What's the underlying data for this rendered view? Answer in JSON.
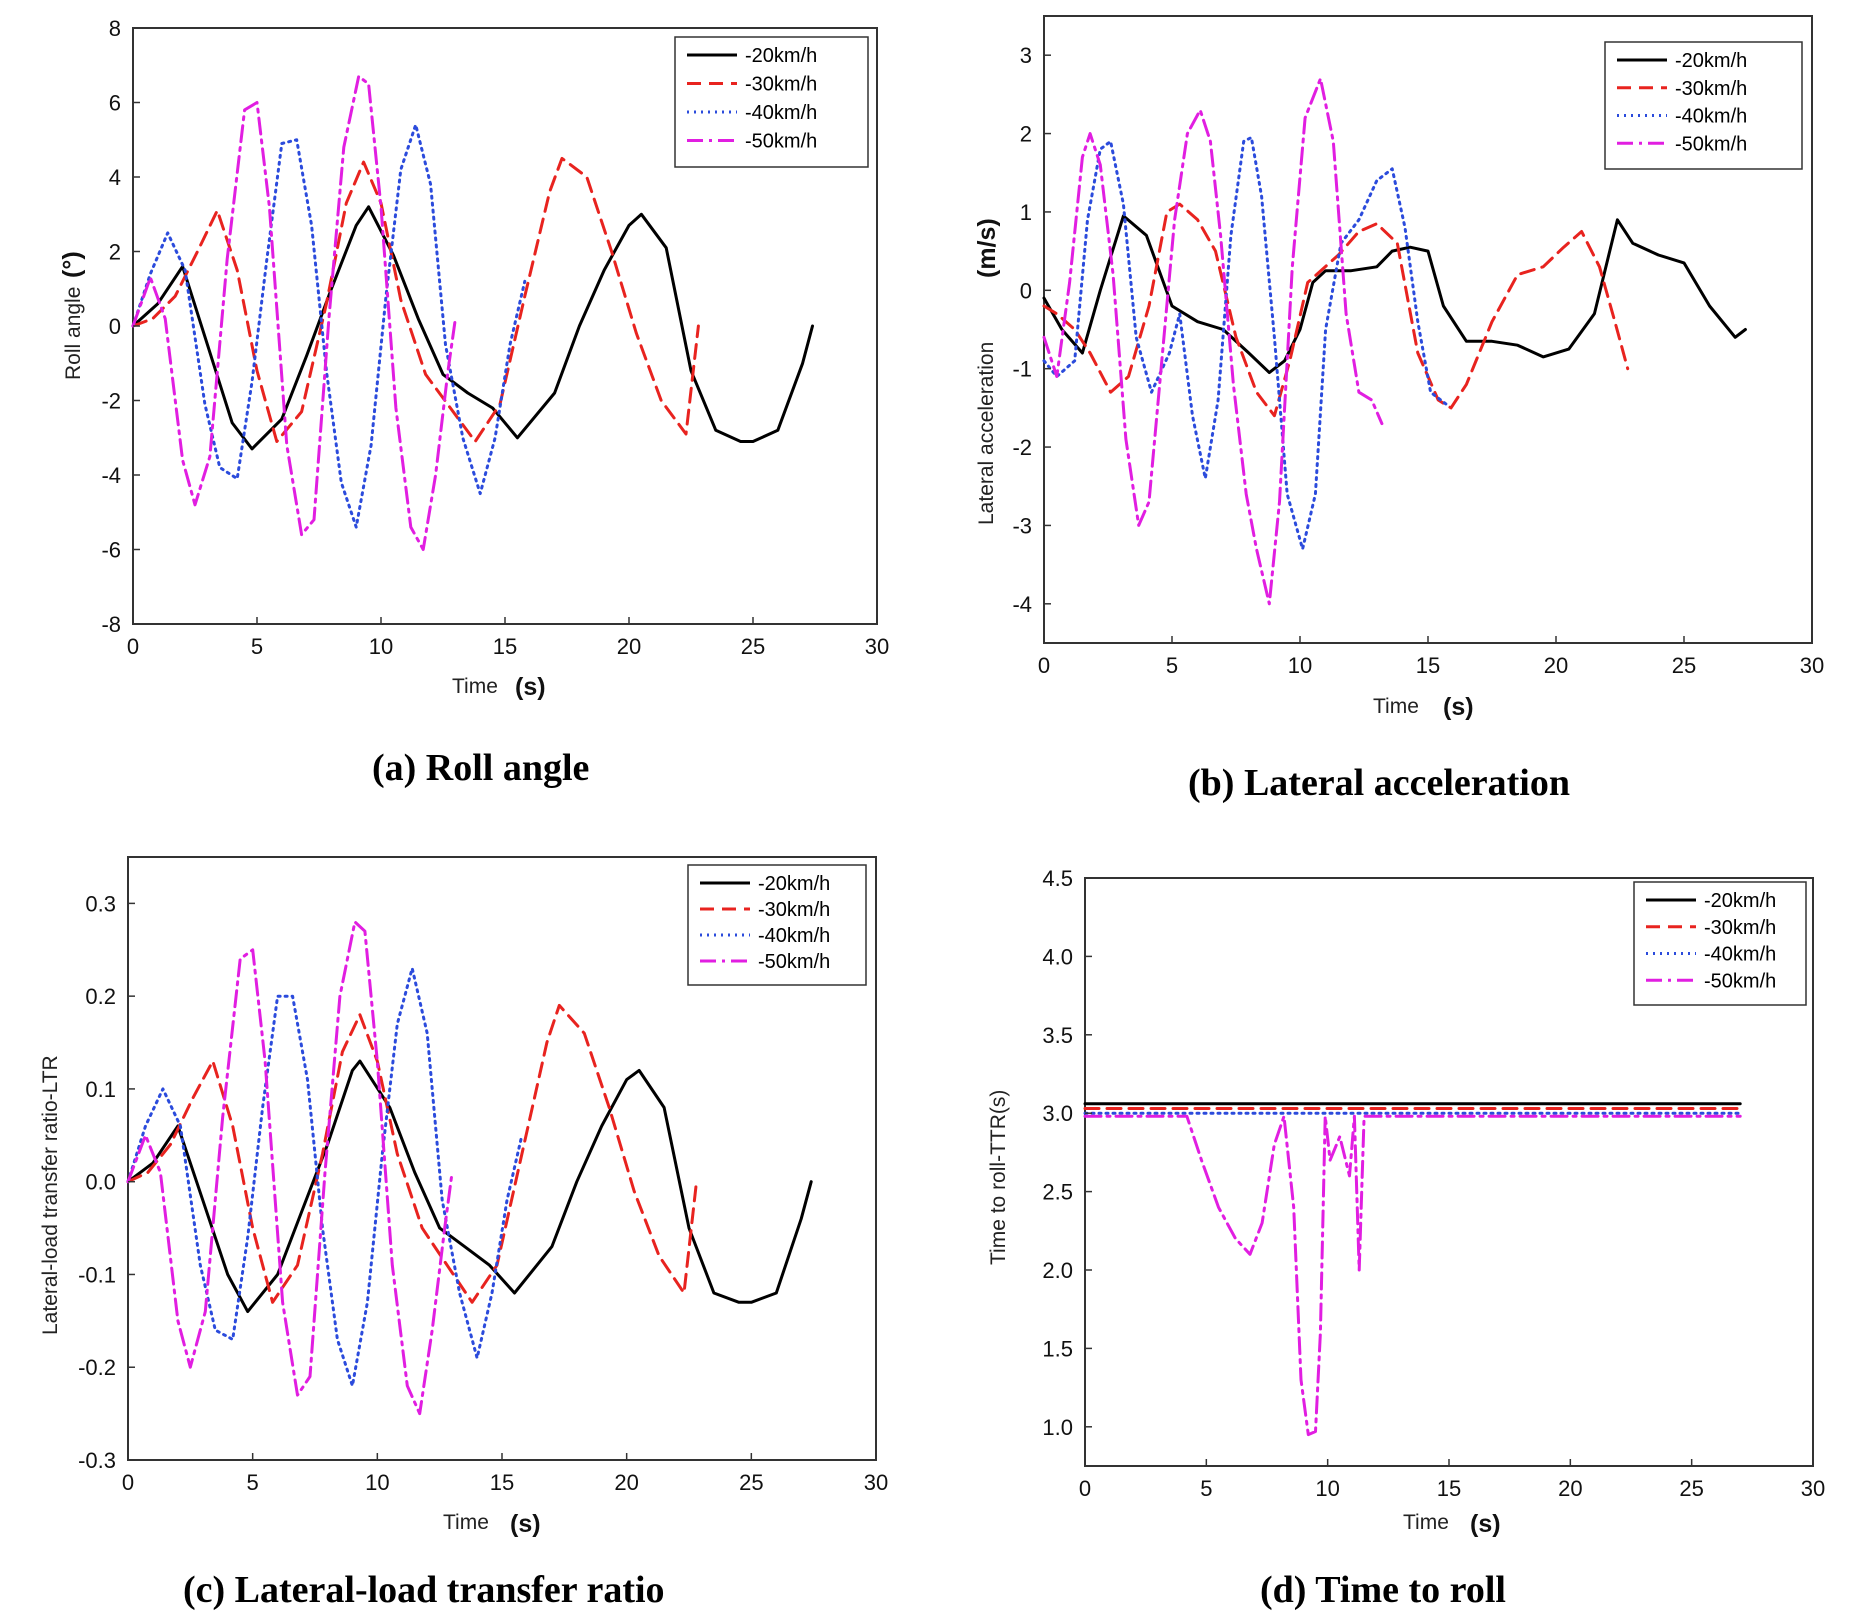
{
  "legend_entries": [
    "-20km/h",
    "-30km/h",
    "-40km/h",
    "-50km/h"
  ],
  "series_colors": [
    "#000000",
    "#e8231f",
    "#2b4bdc",
    "#e11ee1"
  ],
  "series_styles": [
    "solid",
    "dashed",
    "dotted",
    "dash-dot"
  ],
  "chart_data": [
    {
      "id": "a",
      "type": "line",
      "caption": "(a) Roll angle",
      "xlabel": "Time",
      "xunit": "(s)",
      "ylabel": "Roll angle",
      "yunit": "(°)",
      "xlim": [
        0,
        30
      ],
      "ylim": [
        -8,
        8
      ],
      "xticks": [
        0,
        5,
        10,
        15,
        20,
        25,
        30
      ],
      "yticks": [
        8,
        6,
        4,
        2,
        0,
        -2,
        -4,
        -6,
        -8
      ],
      "legend": "top-right",
      "grid": false,
      "series": [
        {
          "name": "-20km/h",
          "x": [
            0,
            1,
            2,
            3,
            4,
            4.8,
            6,
            7,
            8,
            9,
            9.5,
            10.5,
            11.5,
            12.5,
            13.5,
            14.5,
            15.5,
            17,
            18,
            19,
            20,
            20.5,
            21.5,
            22.5,
            23.5,
            24.5,
            25,
            26,
            27,
            27.4
          ],
          "y": [
            0,
            0.6,
            1.6,
            -0.5,
            -2.6,
            -3.3,
            -2.5,
            -0.8,
            1,
            2.7,
            3.2,
            1.9,
            0.2,
            -1.3,
            -1.8,
            -2.2,
            -3,
            -1.8,
            0,
            1.5,
            2.7,
            3,
            2.1,
            -1.2,
            -2.8,
            -3.1,
            -3.1,
            -2.8,
            -1,
            0
          ]
        },
        {
          "name": "-30km/h",
          "x": [
            0,
            0.8,
            1.7,
            2.6,
            3.4,
            4.2,
            5,
            5.8,
            6.8,
            7.8,
            8.6,
            9.3,
            10,
            10.8,
            11.8,
            12.8,
            13.8,
            14.8,
            15.8,
            16.8,
            17.3,
            18.3,
            19.3,
            20.3,
            21.3,
            22.3,
            22.8
          ],
          "y": [
            0,
            0.2,
            0.8,
            2,
            3.1,
            1.5,
            -1.2,
            -3.1,
            -2.3,
            0.6,
            3.3,
            4.4,
            3.3,
            0.7,
            -1.3,
            -2.2,
            -3.1,
            -2.1,
            0.8,
            3.6,
            4.5,
            4,
            2,
            -0.2,
            -2,
            -2.9,
            0
          ]
        },
        {
          "name": "-40km/h",
          "x": [
            0,
            0.7,
            1.4,
            2.1,
            2.9,
            3.5,
            4.2,
            4.8,
            5.4,
            6,
            6.6,
            7.2,
            7.8,
            8.4,
            9,
            9.6,
            10.2,
            10.8,
            11.4,
            12,
            12.6,
            13.3,
            14,
            14.6,
            15.2,
            15.8
          ],
          "y": [
            0,
            1.4,
            2.5,
            1.5,
            -2.1,
            -3.8,
            -4.1,
            -1.5,
            1.8,
            4.9,
            5,
            2.7,
            -1.2,
            -4.2,
            -5.4,
            -3.2,
            0.8,
            4.2,
            5.4,
            3.8,
            -0.5,
            -3,
            -4.5,
            -3,
            -0.5,
            1.2
          ]
        },
        {
          "name": "-50km/h",
          "x": [
            0,
            0.7,
            1.3,
            2,
            2.5,
            3.1,
            3.8,
            4.5,
            5,
            5.5,
            6.2,
            6.8,
            7.3,
            7.9,
            8.5,
            9.1,
            9.5,
            10,
            10.6,
            11.2,
            11.7,
            12.2,
            12.7,
            13
          ],
          "y": [
            0,
            1.3,
            0.2,
            -3.6,
            -4.8,
            -3.5,
            1.8,
            5.8,
            6,
            3.2,
            -3.2,
            -5.6,
            -5.2,
            0.2,
            4.8,
            6.7,
            6.5,
            3.2,
            -2.2,
            -5.4,
            -6,
            -4,
            -1.2,
            0.2
          ]
        }
      ]
    },
    {
      "id": "b",
      "type": "line",
      "caption": "(b) Lateral acceleration",
      "xlabel": "Time",
      "xunit": "(s)",
      "ylabel": "Lateral acceleration",
      "yunit": "(m/s)",
      "xlim": [
        0,
        30
      ],
      "ylim": [
        -4.5,
        3.5
      ],
      "xticks": [
        0,
        5,
        10,
        15,
        20,
        25,
        30
      ],
      "yticks": [
        3,
        2,
        1,
        0,
        -1,
        -2,
        -3,
        -4
      ],
      "legend": "top-right",
      "grid": false,
      "series": [
        {
          "name": "-20km/h",
          "x": [
            0,
            0.7,
            1.5,
            2.2,
            3.1,
            4,
            5,
            6,
            7,
            8,
            8.8,
            9.4,
            10,
            10.5,
            11,
            12,
            13,
            13.6,
            14.3,
            15,
            15.6,
            16.5,
            17.5,
            18.5,
            19.5,
            20.5,
            21.5,
            22.4,
            23,
            24,
            25,
            26,
            27,
            27.4
          ],
          "y": [
            -0.1,
            -0.5,
            -0.8,
            0,
            0.95,
            0.7,
            -0.2,
            -0.4,
            -0.5,
            -0.8,
            -1.05,
            -0.9,
            -0.5,
            0.1,
            0.25,
            0.25,
            0.3,
            0.5,
            0.55,
            0.5,
            -0.2,
            -0.65,
            -0.65,
            -0.7,
            -0.85,
            -0.75,
            -0.3,
            0.9,
            0.6,
            0.45,
            0.35,
            -0.2,
            -0.6,
            -0.5
          ]
        },
        {
          "name": "-30km/h",
          "x": [
            0,
            0.5,
            1.2,
            1.8,
            2.6,
            3.3,
            4.1,
            4.8,
            5.3,
            6,
            6.7,
            7.5,
            8.3,
            9,
            9.6,
            10.3,
            11.5,
            12.3,
            13,
            13.8,
            14.6,
            15.4,
            15.9,
            16.5,
            17.5,
            18.5,
            19.5,
            20.3,
            21,
            21.7,
            22.3,
            22.8
          ],
          "y": [
            -0.2,
            -0.3,
            -0.5,
            -0.8,
            -1.3,
            -1.1,
            -0.2,
            1,
            1.1,
            0.9,
            0.5,
            -0.6,
            -1.3,
            -1.6,
            -0.9,
            0.1,
            0.45,
            0.75,
            0.85,
            0.6,
            -0.8,
            -1.4,
            -1.5,
            -1.2,
            -0.4,
            0.2,
            0.3,
            0.55,
            0.75,
            0.3,
            -0.4,
            -1
          ]
        },
        {
          "name": "-40km/h",
          "x": [
            0,
            0.5,
            1.2,
            1.7,
            2.2,
            2.6,
            3.1,
            3.6,
            4.2,
            4.9,
            5.3,
            5.8,
            6.3,
            6.8,
            7.3,
            7.8,
            8.1,
            8.5,
            9,
            9.5,
            10.1,
            10.6,
            11,
            11.6,
            12.3,
            13,
            13.6,
            14.1,
            14.6,
            15.1,
            15.7
          ],
          "y": [
            -0.9,
            -1.1,
            -0.9,
            0.9,
            1.8,
            1.9,
            1.1,
            -0.6,
            -1.3,
            -0.8,
            -0.3,
            -1.6,
            -2.4,
            -1.4,
            0.7,
            1.9,
            1.95,
            1.2,
            -0.6,
            -2.6,
            -3.3,
            -2.6,
            -0.5,
            0.6,
            0.9,
            1.4,
            1.55,
            0.8,
            -0.4,
            -1.3,
            -1.45
          ]
        },
        {
          "name": "-50km/h",
          "x": [
            0,
            0.5,
            1,
            1.5,
            1.8,
            2.2,
            2.7,
            3.2,
            3.7,
            4.1,
            4.6,
            5.1,
            5.6,
            6.1,
            6.5,
            6.9,
            7.4,
            7.9,
            8.3,
            8.8,
            9.2,
            9.7,
            10.2,
            10.8,
            11.3,
            11.8,
            12.3,
            12.8,
            13.2
          ],
          "y": [
            -0.6,
            -1.1,
            0.1,
            1.7,
            2,
            1.6,
            0.2,
            -1.9,
            -3,
            -2.7,
            -0.9,
            0.9,
            2,
            2.3,
            1.9,
            0.7,
            -1.2,
            -2.6,
            -3.3,
            -4,
            -2.7,
            0.3,
            2.2,
            2.7,
            1.9,
            -0.3,
            -1.3,
            -1.4,
            -1.7
          ]
        }
      ]
    },
    {
      "id": "c",
      "type": "line",
      "caption": "(c) Lateral-load transfer ratio",
      "xlabel": "Time",
      "xunit": "(s)",
      "ylabel": "Lateral-load transfer ratio-LTR",
      "yunit": "",
      "xlim": [
        0,
        30
      ],
      "ylim": [
        -0.3,
        0.35
      ],
      "xticks": [
        0,
        5,
        10,
        15,
        20,
        25,
        30
      ],
      "yticks": [
        0.3,
        0.2,
        0.1,
        0.0,
        -0.1,
        -0.2,
        -0.3
      ],
      "yticklabels": [
        "0.3",
        "0.2",
        "0.1",
        "0.0",
        "-0.1",
        "-0.2",
        "-0.3"
      ],
      "legend": "top-right",
      "grid": false,
      "series": [
        {
          "name": "-20km/h",
          "x": [
            0,
            1,
            2,
            3,
            4,
            4.8,
            6,
            7,
            8,
            9,
            9.3,
            10.5,
            11.5,
            12.5,
            13.5,
            14.5,
            15.5,
            17,
            18,
            19,
            20,
            20.5,
            21.5,
            22.5,
            23.5,
            24.5,
            25,
            26,
            27,
            27.4
          ],
          "y": [
            0,
            0.02,
            0.06,
            -0.02,
            -0.1,
            -0.14,
            -0.1,
            -0.03,
            0.04,
            0.12,
            0.13,
            0.08,
            0.01,
            -0.05,
            -0.07,
            -0.09,
            -0.12,
            -0.07,
            0,
            0.06,
            0.11,
            0.12,
            0.08,
            -0.05,
            -0.12,
            -0.13,
            -0.13,
            -0.12,
            -0.04,
            0
          ]
        },
        {
          "name": "-30km/h",
          "x": [
            0,
            0.8,
            1.7,
            2.6,
            3.4,
            4.2,
            5,
            5.8,
            6.8,
            7.8,
            8.6,
            9.3,
            10,
            10.8,
            11.8,
            12.8,
            13.8,
            14.8,
            15.8,
            16.8,
            17.3,
            18.3,
            19.3,
            20.3,
            21.3,
            22.3,
            22.8
          ],
          "y": [
            0,
            0.01,
            0.04,
            0.09,
            0.13,
            0.06,
            -0.05,
            -0.13,
            -0.09,
            0.03,
            0.14,
            0.18,
            0.13,
            0.03,
            -0.05,
            -0.09,
            -0.13,
            -0.09,
            0.03,
            0.15,
            0.19,
            0.16,
            0.08,
            -0.01,
            -0.08,
            -0.12,
            0
          ]
        },
        {
          "name": "-40km/h",
          "x": [
            0,
            0.7,
            1.4,
            2.1,
            2.9,
            3.5,
            4.2,
            4.8,
            5.4,
            6,
            6.6,
            7.2,
            7.8,
            8.4,
            9,
            9.6,
            10.2,
            10.8,
            11.4,
            12,
            12.6,
            13.3,
            14,
            14.6,
            15.2,
            15.8
          ],
          "y": [
            0,
            0.06,
            0.1,
            0.06,
            -0.09,
            -0.16,
            -0.17,
            -0.06,
            0.08,
            0.2,
            0.2,
            0.11,
            -0.05,
            -0.17,
            -0.22,
            -0.13,
            0.03,
            0.17,
            0.23,
            0.16,
            -0.02,
            -0.12,
            -0.19,
            -0.12,
            -0.02,
            0.05
          ]
        },
        {
          "name": "-50km/h",
          "x": [
            0,
            0.7,
            1.3,
            2,
            2.5,
            3.1,
            3.8,
            4.5,
            5,
            5.5,
            6.2,
            6.8,
            7.3,
            7.9,
            8.5,
            9.1,
            9.5,
            10,
            10.6,
            11.2,
            11.7,
            12.2,
            12.7,
            13
          ],
          "y": [
            0,
            0.05,
            0.01,
            -0.15,
            -0.2,
            -0.14,
            0.07,
            0.24,
            0.25,
            0.13,
            -0.13,
            -0.23,
            -0.21,
            0.01,
            0.2,
            0.28,
            0.27,
            0.13,
            -0.09,
            -0.22,
            -0.25,
            -0.16,
            -0.05,
            0.01
          ]
        }
      ]
    },
    {
      "id": "d",
      "type": "line",
      "caption": "(d) Time to roll",
      "xlabel": "Time",
      "xunit": "(s)",
      "ylabel": "Time to roll-TTR(s)",
      "yunit": "",
      "xlim": [
        0,
        30
      ],
      "ylim": [
        0.75,
        4.5
      ],
      "xticks": [
        0,
        5,
        10,
        15,
        20,
        25,
        30
      ],
      "yticks": [
        4.5,
        4.0,
        3.5,
        3.0,
        2.5,
        2.0,
        1.5,
        1.0
      ],
      "yticklabels": [
        "4.5",
        "4.0",
        "3.5",
        "3.0",
        "2.5",
        "2.0",
        "1.5",
        "1.0"
      ],
      "legend": "top-right",
      "grid": false,
      "series": [
        {
          "name": "-20km/h",
          "x": [
            0,
            27
          ],
          "y": [
            3.06,
            3.06
          ]
        },
        {
          "name": "-30km/h",
          "x": [
            0,
            27
          ],
          "y": [
            3.03,
            3.03
          ]
        },
        {
          "name": "-40km/h",
          "x": [
            0,
            27
          ],
          "y": [
            3.0,
            3.0
          ]
        },
        {
          "name": "-50km/h",
          "x": [
            0,
            4.2,
            4.8,
            5.5,
            6.2,
            6.8,
            7.3,
            7.8,
            8.2,
            8.6,
            8.9,
            9.2,
            9.5,
            9.7,
            9.9,
            10.1,
            10.5,
            10.9,
            11.1,
            11.3,
            11.5,
            11.8,
            27
          ],
          "y": [
            2.98,
            2.98,
            2.7,
            2.4,
            2.2,
            2.1,
            2.3,
            2.8,
            2.98,
            2.4,
            1.3,
            0.95,
            0.97,
            1.6,
            2.98,
            2.7,
            2.85,
            2.6,
            2.98,
            2,
            2.98,
            2.98,
            2.98
          ]
        }
      ]
    }
  ]
}
